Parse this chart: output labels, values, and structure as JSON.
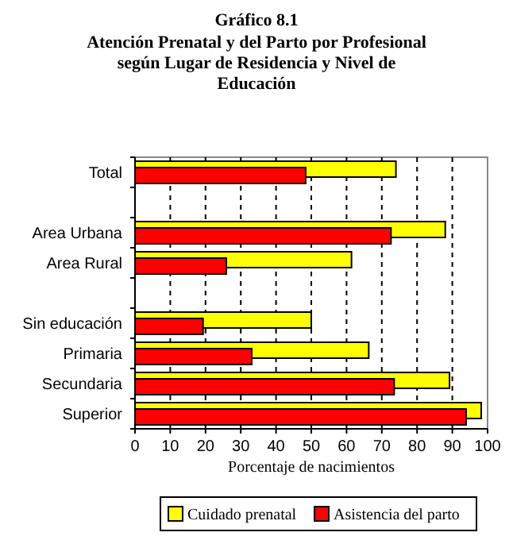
{
  "chart_data": {
    "type": "bar",
    "orientation": "horizontal",
    "title": "Gráfico 8.1",
    "subtitle": "Atención Prenatal y del Parto por Profesional según Lugar de Residencia y Nivel de Educación",
    "xlabel": "Porcentaje de nacimientos",
    "categories": [
      "Total",
      null,
      "Area Urbana",
      "Area Rural",
      null,
      "Sin educación",
      "Primaria",
      "Secundaria",
      "Superior"
    ],
    "series": [
      {
        "name": "Cuidado prenatal",
        "color": "#ffff00",
        "values": [
          74,
          null,
          88,
          61.4,
          null,
          50,
          66.3,
          89.2,
          98.2
        ]
      },
      {
        "name": "Asistencia del parto",
        "color": "#ff0000",
        "values": [
          48.4,
          null,
          72.6,
          25.9,
          null,
          19.3,
          33.1,
          73.5,
          93.9
        ]
      }
    ],
    "xlim": [
      0,
      100
    ],
    "xticks": [
      0,
      10,
      20,
      30,
      40,
      50,
      60,
      70,
      80,
      90,
      100
    ],
    "grid": "x",
    "legend": "bottom"
  }
}
